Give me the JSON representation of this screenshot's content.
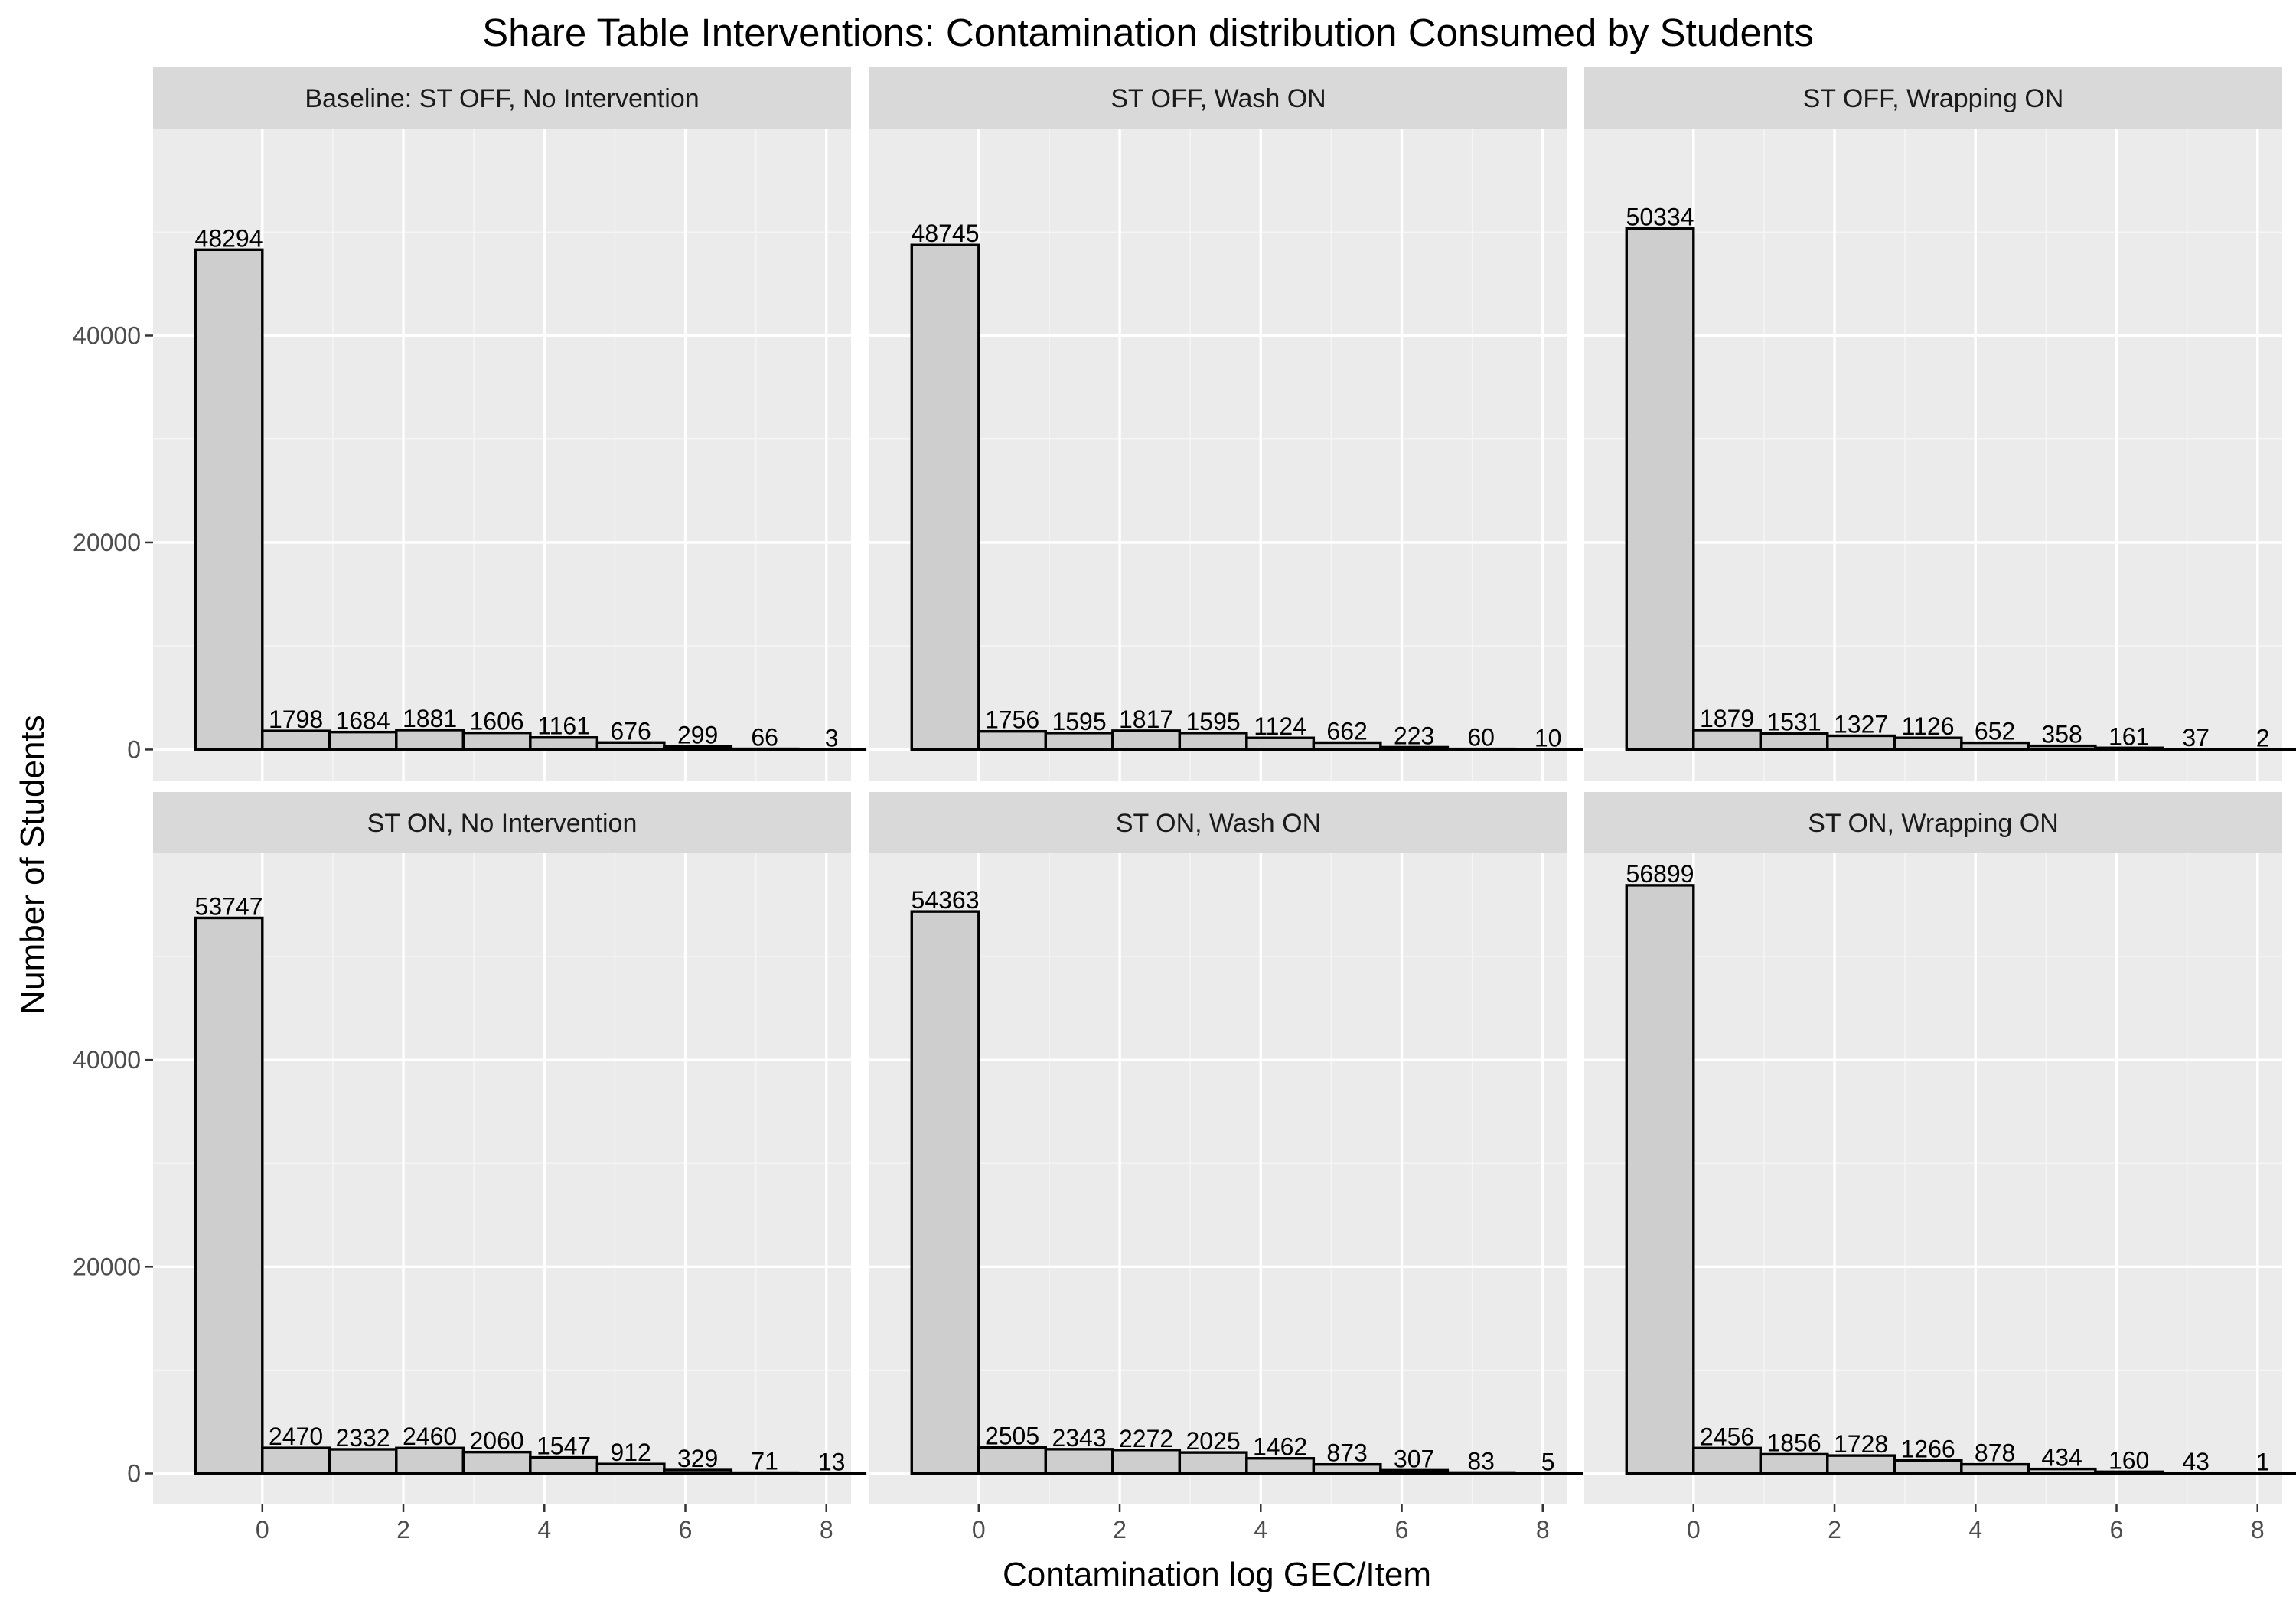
{
  "chart_data": {
    "type": "bar",
    "title": "Share Table Interventions: Contamination distribution Consumed by Students",
    "xlabel": "Contamination log GEC/Item",
    "ylabel": "Number of Students",
    "x_ticks": [
      0,
      2,
      4,
      6,
      8
    ],
    "y_ticks": [
      0,
      20000,
      40000
    ],
    "xlim": [
      -1.55,
      8.35
    ],
    "ylim": [
      -3000,
      60000
    ],
    "grid": true,
    "bin_width": 0.95,
    "bin_centers": [
      -0.475,
      0.475,
      1.425,
      2.375,
      3.325,
      4.275,
      5.225,
      6.175,
      7.125,
      8.075
    ],
    "facets": [
      {
        "label": "Baseline: ST OFF, No Intervention",
        "values": [
          48294,
          1798,
          1684,
          1881,
          1606,
          1161,
          676,
          299,
          66,
          3
        ]
      },
      {
        "label": "ST OFF, Wash ON",
        "values": [
          48745,
          1756,
          1595,
          1817,
          1595,
          1124,
          662,
          223,
          60,
          10
        ]
      },
      {
        "label": "ST OFF, Wrapping ON",
        "values": [
          50334,
          1879,
          1531,
          1327,
          1126,
          652,
          358,
          161,
          37,
          2
        ]
      },
      {
        "label": "ST ON, No Intervention",
        "values": [
          53747,
          2470,
          2332,
          2460,
          2060,
          1547,
          912,
          329,
          71,
          13
        ]
      },
      {
        "label": "ST ON, Wash ON",
        "values": [
          54363,
          2505,
          2343,
          2272,
          2025,
          1462,
          873,
          307,
          83,
          5
        ]
      },
      {
        "label": "ST ON, Wrapping ON",
        "values": [
          56899,
          2456,
          1856,
          1728,
          1266,
          878,
          434,
          160,
          43,
          1
        ]
      }
    ]
  }
}
